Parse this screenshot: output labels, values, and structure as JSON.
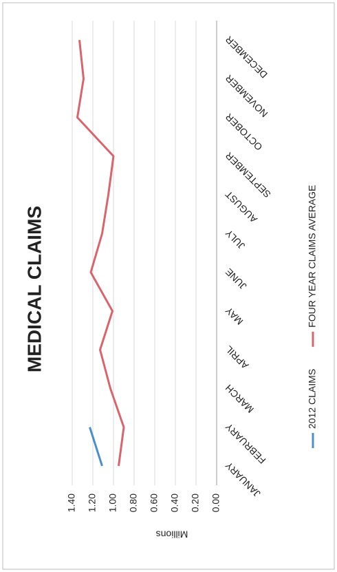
{
  "chart_data": {
    "type": "line",
    "title": "MEDICAL CLAIMS",
    "y_label": "Millions",
    "categories": [
      "JANUARY",
      "FEBRUARY",
      "MARCH",
      "APRIL",
      "MAY",
      "JUNE",
      "JULY",
      "AUGUST",
      "SEPTEMBER",
      "OCTOBER",
      "NOVEMBER",
      "DECEMBER"
    ],
    "series": [
      {
        "name": "2012 CLAIMS",
        "color": "#4a8fcc",
        "values": [
          1.11,
          1.23,
          null,
          null,
          null,
          null,
          null,
          null,
          null,
          null,
          null,
          null
        ]
      },
      {
        "name": "FOUR YEAR CLAIMS AVERAGE",
        "color": "#d9646c",
        "values": [
          0.95,
          0.9,
          1.03,
          1.13,
          1.01,
          1.22,
          1.11,
          1.05,
          1.0,
          1.35,
          1.29,
          1.33
        ]
      }
    ],
    "ylim": [
      0,
      1.4
    ],
    "yticks": [
      {
        "value": 0,
        "label": "0.00"
      },
      {
        "value": 0.2,
        "label": "0.20"
      },
      {
        "value": 0.4,
        "label": "0.40"
      },
      {
        "value": 0.6,
        "label": "0.60"
      },
      {
        "value": 0.8,
        "label": "0.80"
      },
      {
        "value": 1.0,
        "label": "1.00"
      },
      {
        "value": 1.2,
        "label": "1.20"
      },
      {
        "value": 1.4,
        "label": "1.40"
      }
    ],
    "grid": true,
    "legend": "bottom"
  }
}
